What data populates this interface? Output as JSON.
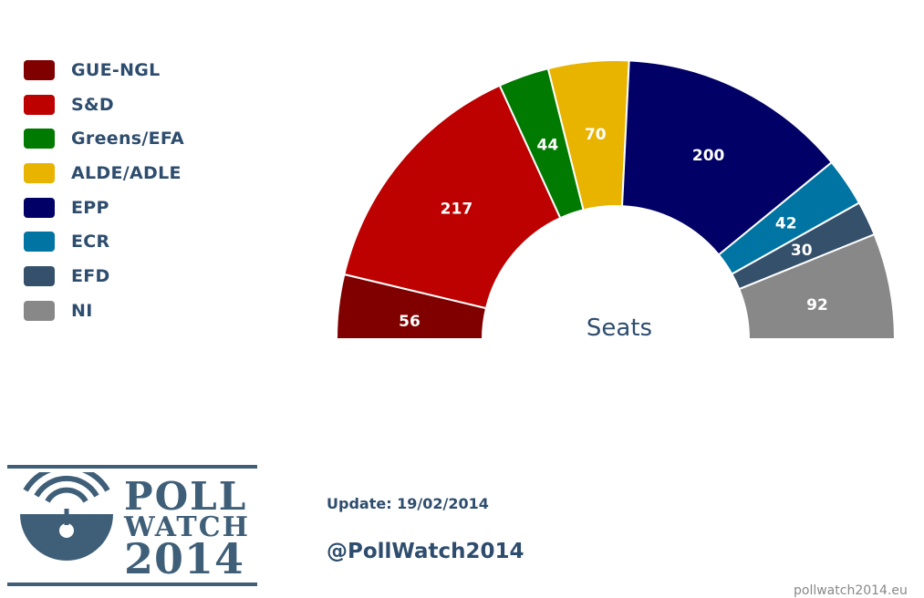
{
  "chart_data": {
    "type": "pie",
    "subtype": "parliament-half-donut",
    "center_label": "Seats",
    "series": [
      {
        "name": "GUE-NGL",
        "value": 56,
        "color": "#800000"
      },
      {
        "name": "S&D",
        "value": 217,
        "color": "#bd0000"
      },
      {
        "name": "Greens/EFA",
        "value": 44,
        "color": "#007a00"
      },
      {
        "name": "ALDE/ADLE",
        "value": 70,
        "color": "#e8b400"
      },
      {
        "name": "EPP",
        "value": 200,
        "color": "#000066"
      },
      {
        "name": "ECR",
        "value": 42,
        "color": "#0075a3"
      },
      {
        "name": "EFD",
        "value": 30,
        "color": "#34506b"
      },
      {
        "name": "NI",
        "value": 92,
        "color": "#888888"
      }
    ],
    "legend_placement": "left"
  },
  "footer": {
    "update": "Update: 19/02/2014",
    "handle": "@PollWatch2014",
    "site": "pollwatch2014.eu"
  },
  "logo": {
    "line1": "POLL",
    "line2": "WATCH",
    "line3": "2014",
    "icon": "radio-waves-icon"
  }
}
